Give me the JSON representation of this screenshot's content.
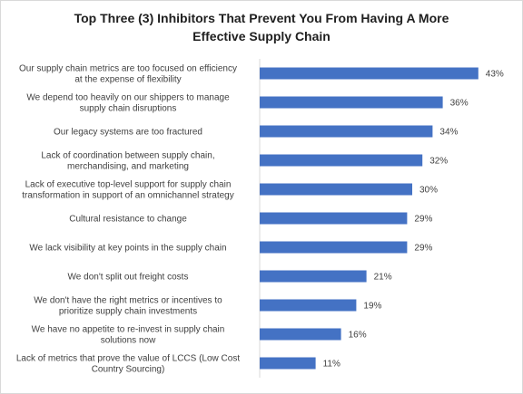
{
  "chart_data": {
    "type": "bar",
    "orientation": "horizontal",
    "title": "Top Three (3) Inhibitors That Prevent You From Having A More Effective Supply Chain",
    "title_lines": [
      "Top Three (3) Inhibitors That Prevent You From Having A More",
      "Effective Supply Chain"
    ],
    "categories": [
      [
        "Our supply chain metrics are too focused on efficiency",
        "at the expense of flexibility"
      ],
      [
        "We depend too heavily on our shippers to manage",
        "supply chain disruptions"
      ],
      [
        "Our legacy systems are too fractured"
      ],
      [
        "Lack of coordination between supply chain,",
        "merchandising, and marketing"
      ],
      [
        "Lack of executive top-level support for supply chain",
        "transformation in support of an omnichannel strategy"
      ],
      [
        "Cultural resistance to change"
      ],
      [
        "We lack visibility at key points in the supply chain"
      ],
      [
        "We don't split out freight costs"
      ],
      [
        "We don't have the right metrics or incentives to",
        "prioritize supply chain investments"
      ],
      [
        "We have no appetite to re-invest in supply chain",
        "solutions now"
      ],
      [
        "Lack of metrics that prove the value of LCCS (Low Cost",
        "Country Sourcing)"
      ]
    ],
    "values": [
      43,
      36,
      34,
      32,
      30,
      29,
      29,
      21,
      19,
      16,
      11
    ],
    "value_labels": [
      "43%",
      "36%",
      "34%",
      "32%",
      "30%",
      "29%",
      "29%",
      "21%",
      "19%",
      "16%",
      "11%"
    ],
    "unit": "%",
    "xlim": [
      0,
      50
    ],
    "grid": false,
    "legend": "none",
    "bar_color": "#4472C4"
  }
}
